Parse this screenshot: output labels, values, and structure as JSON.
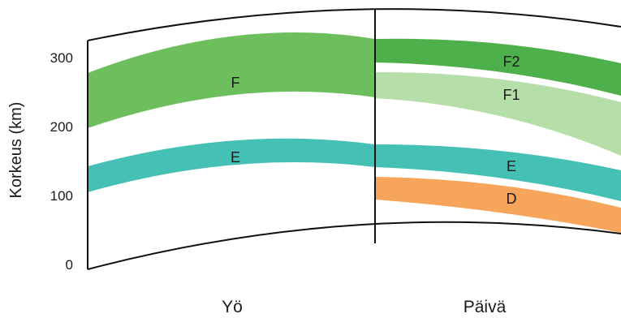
{
  "y_axis": {
    "label": "Korkeus (km)",
    "ticks": [
      "0",
      "100",
      "200",
      "300"
    ]
  },
  "panels": {
    "night": {
      "caption": "Yö",
      "layers": [
        {
          "key": "F",
          "label": "F",
          "color": "#6cbf5c"
        },
        {
          "key": "E",
          "label": "E",
          "color": "#45c0b5"
        }
      ]
    },
    "day": {
      "caption": "Päivä",
      "layers": [
        {
          "key": "F2",
          "label": "F2",
          "color": "#4db04a"
        },
        {
          "key": "F1",
          "label": "F1",
          "color": "#b6dea8"
        },
        {
          "key": "E",
          "label": "E",
          "color": "#45c0b5"
        },
        {
          "key": "D",
          "label": "D",
          "color": "#f6a55b"
        }
      ]
    }
  },
  "colors": {
    "outline": "#111111"
  }
}
